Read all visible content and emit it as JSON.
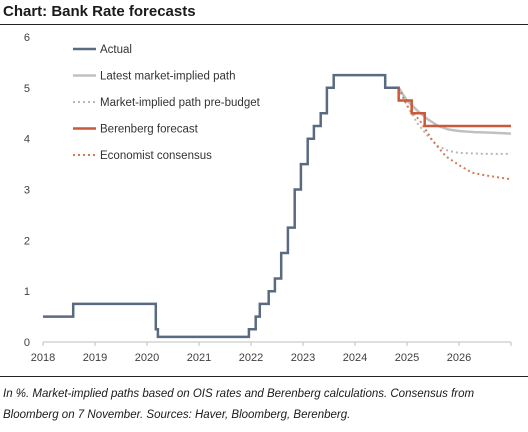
{
  "header": {
    "title": "Chart: Bank Rate forecasts"
  },
  "footer": {
    "note": "In %. Market-implied paths based on OIS rates and Berenberg calculations. Consensus from Bloomberg on 7 November. Sources: Haver, Bloomberg, Berenberg."
  },
  "chart_data": {
    "type": "line",
    "title": "Bank Rate forecasts",
    "xlabel": "",
    "ylabel": "",
    "xlim": [
      2018,
      2027
    ],
    "ylim": [
      0,
      6
    ],
    "x_ticks": [
      "2018",
      "2019",
      "2020",
      "2021",
      "2022",
      "2023",
      "2024",
      "2025",
      "2026"
    ],
    "y_ticks": [
      "0",
      "1",
      "2",
      "3",
      "4",
      "5",
      "6"
    ],
    "grid": false,
    "legend_position": "top-left",
    "series": [
      {
        "name": "Actual",
        "color": "#5a6a80",
        "style": "solid-step",
        "points": [
          [
            2018.0,
            0.5
          ],
          [
            2018.58,
            0.5
          ],
          [
            2018.58,
            0.75
          ],
          [
            2020.17,
            0.75
          ],
          [
            2020.17,
            0.25
          ],
          [
            2020.21,
            0.25
          ],
          [
            2020.21,
            0.1
          ],
          [
            2021.96,
            0.1
          ],
          [
            2021.96,
            0.25
          ],
          [
            2022.09,
            0.25
          ],
          [
            2022.09,
            0.5
          ],
          [
            2022.17,
            0.5
          ],
          [
            2022.17,
            0.75
          ],
          [
            2022.34,
            0.75
          ],
          [
            2022.34,
            1.0
          ],
          [
            2022.46,
            1.0
          ],
          [
            2022.46,
            1.25
          ],
          [
            2022.58,
            1.25
          ],
          [
            2022.58,
            1.75
          ],
          [
            2022.71,
            1.75
          ],
          [
            2022.71,
            2.25
          ],
          [
            2022.84,
            2.25
          ],
          [
            2022.84,
            3.0
          ],
          [
            2022.96,
            3.0
          ],
          [
            2022.96,
            3.5
          ],
          [
            2023.09,
            3.5
          ],
          [
            2023.09,
            4.0
          ],
          [
            2023.21,
            4.0
          ],
          [
            2023.21,
            4.25
          ],
          [
            2023.34,
            4.25
          ],
          [
            2023.34,
            4.5
          ],
          [
            2023.46,
            4.5
          ],
          [
            2023.46,
            5.0
          ],
          [
            2023.59,
            5.0
          ],
          [
            2023.59,
            5.25
          ],
          [
            2024.58,
            5.25
          ],
          [
            2024.58,
            5.0
          ],
          [
            2024.84,
            5.0
          ]
        ]
      },
      {
        "name": "Latest market-implied path",
        "color": "#c0c0c0",
        "style": "solid",
        "points": [
          [
            2024.84,
            5.0
          ],
          [
            2025.0,
            4.75
          ],
          [
            2025.2,
            4.55
          ],
          [
            2025.4,
            4.38
          ],
          [
            2025.6,
            4.25
          ],
          [
            2025.8,
            4.18
          ],
          [
            2026.0,
            4.15
          ],
          [
            2026.3,
            4.13
          ],
          [
            2026.6,
            4.12
          ],
          [
            2027.0,
            4.1
          ]
        ]
      },
      {
        "name": "Market-implied path pre-budget",
        "color": "#b8b8b8",
        "style": "dotted",
        "points": [
          [
            2024.84,
            5.0
          ],
          [
            2025.0,
            4.65
          ],
          [
            2025.2,
            4.3
          ],
          [
            2025.4,
            4.05
          ],
          [
            2025.6,
            3.85
          ],
          [
            2025.8,
            3.76
          ],
          [
            2026.0,
            3.72
          ],
          [
            2026.5,
            3.7
          ],
          [
            2027.0,
            3.7
          ]
        ]
      },
      {
        "name": "Berenberg forecast",
        "color": "#c9593a",
        "style": "solid-step",
        "points": [
          [
            2024.58,
            5.0
          ],
          [
            2024.84,
            5.0
          ],
          [
            2024.84,
            4.75
          ],
          [
            2025.09,
            4.75
          ],
          [
            2025.09,
            4.5
          ],
          [
            2025.34,
            4.5
          ],
          [
            2025.34,
            4.25
          ],
          [
            2027.0,
            4.25
          ]
        ]
      },
      {
        "name": "Economist consensus",
        "color": "#d47a5a",
        "style": "dotted",
        "points": [
          [
            2024.84,
            5.0
          ],
          [
            2025.0,
            4.65
          ],
          [
            2025.25,
            4.35
          ],
          [
            2025.5,
            3.95
          ],
          [
            2025.75,
            3.65
          ],
          [
            2026.0,
            3.48
          ],
          [
            2026.25,
            3.33
          ],
          [
            2026.5,
            3.28
          ],
          [
            2027.0,
            3.2
          ]
        ]
      }
    ]
  }
}
